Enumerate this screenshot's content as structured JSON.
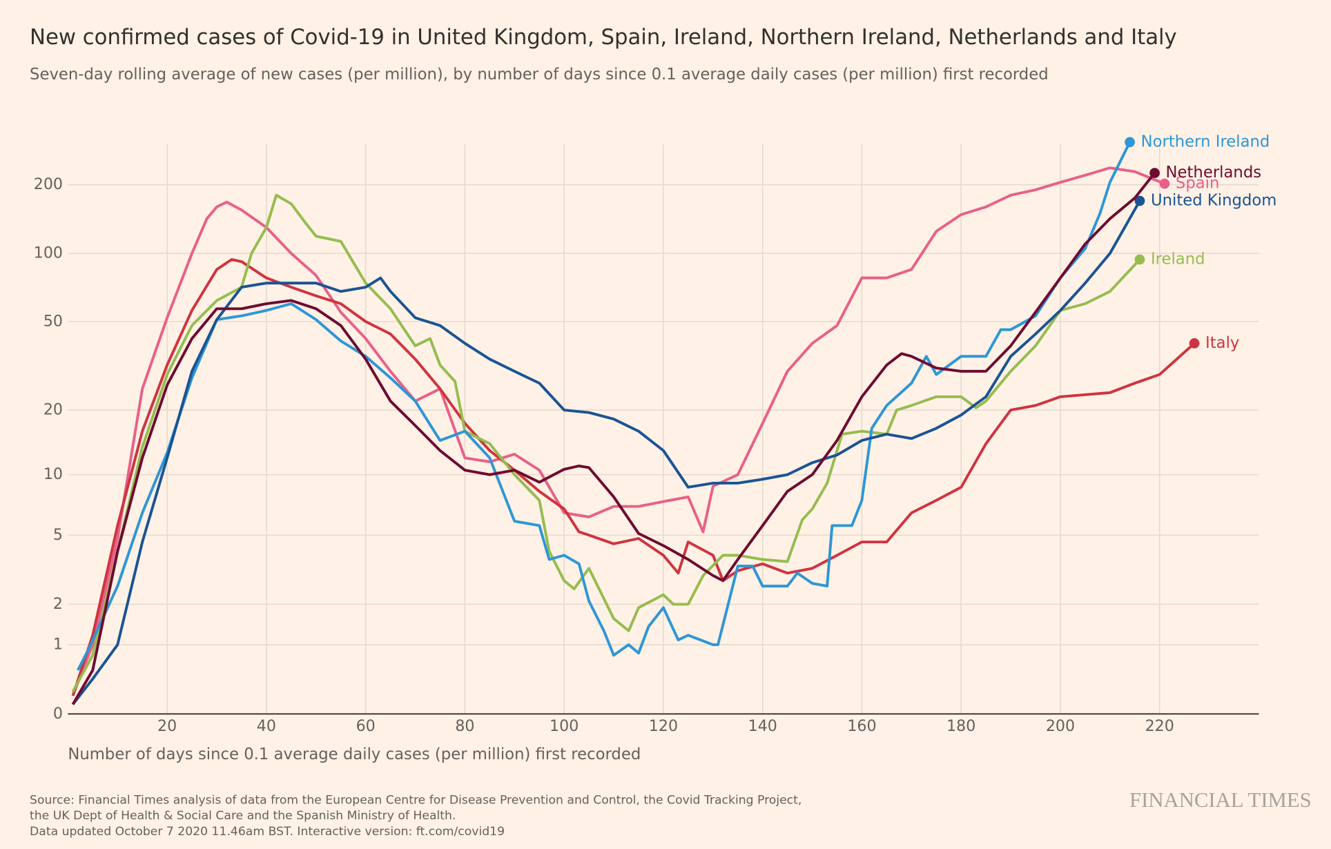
{
  "chart_data": {
    "type": "line",
    "title": "New confirmed cases of Covid-19 in United Kingdom, Spain, Ireland, Northern Ireland, Netherlands and Italy",
    "subtitle": "Seven-day rolling average of new cases (per million), by number of days since 0.1 average daily cases (per million) first recorded",
    "x_label": "Number of days since 0.1 average daily cases (per million) first recorded",
    "notes": [
      "Source: Financial Times analysis of data from the European Centre for Disease Prevention and Control, the Covid Tracking Project,",
      "the UK Dept of Health & Social Care and the Spanish Ministry of Health.",
      "Data updated October 7 2020 11.46am BST. Interactive version: ft.com/covid19"
    ],
    "logo": "FINANCIAL TIMES",
    "yscale": "log1p",
    "grid": true,
    "xlim": [
      0,
      240
    ],
    "xticks": [
      20,
      40,
      60,
      80,
      100,
      120,
      140,
      160,
      180,
      200,
      220
    ],
    "ylim": [
      0,
      300
    ],
    "yticks": [
      0,
      1,
      2,
      5,
      10,
      20,
      50,
      100,
      200
    ],
    "series": [
      {
        "name": "Spain",
        "color": "#e8608a",
        "x": [
          1,
          5,
          10,
          15,
          20,
          25,
          28,
          30,
          32,
          35,
          40,
          45,
          50,
          55,
          60,
          65,
          70,
          75,
          80,
          85,
          90,
          95,
          100,
          105,
          110,
          115,
          120,
          125,
          128,
          130,
          135,
          140,
          145,
          150,
          155,
          160,
          165,
          170,
          175,
          180,
          185,
          190,
          195,
          200,
          205,
          210,
          215,
          221
        ],
        "values": [
          0.2,
          1,
          4.8,
          25,
          52,
          100,
          142,
          160,
          168,
          155,
          130,
          100,
          80,
          55,
          42,
          30,
          22,
          25,
          12,
          11.5,
          12.5,
          10.5,
          6.5,
          6.2,
          7,
          7,
          7.4,
          7.8,
          5.2,
          8.8,
          10,
          17.4,
          30,
          40,
          48,
          78,
          78,
          85,
          125,
          148,
          160,
          180,
          190,
          205,
          220,
          237,
          228,
          202
        ]
      },
      {
        "name": "Italy",
        "color": "#cf3440",
        "x": [
          1,
          5,
          10,
          15,
          20,
          25,
          30,
          33,
          35,
          40,
          45,
          50,
          55,
          60,
          65,
          70,
          75,
          80,
          85,
          90,
          95,
          100,
          103,
          105,
          110,
          115,
          120,
          123,
          125,
          130,
          132,
          135,
          140,
          145,
          150,
          155,
          160,
          165,
          170,
          175,
          180,
          185,
          190,
          195,
          200,
          205,
          210,
          215,
          220,
          227
        ],
        "values": [
          0.2,
          1.2,
          5.6,
          16,
          32,
          56,
          85,
          94,
          92,
          78,
          71,
          65,
          60,
          50,
          44,
          34,
          25,
          17.4,
          13,
          10.5,
          8.3,
          6.8,
          5.2,
          5,
          4.5,
          4.8,
          3.9,
          3.1,
          4.6,
          3.9,
          2.8,
          3.2,
          3.5,
          3.1,
          3.3,
          3.9,
          4.6,
          4.6,
          6.5,
          7.5,
          8.7,
          14,
          20,
          21,
          23,
          23.5,
          24,
          26.5,
          29,
          40
        ]
      },
      {
        "name": "Ireland",
        "color": "#96bc4f",
        "x": [
          1,
          5,
          10,
          15,
          20,
          25,
          30,
          35,
          37,
          40,
          42,
          45,
          48,
          50,
          55,
          60,
          65,
          70,
          73,
          75,
          78,
          80,
          85,
          90,
          95,
          97,
          100,
          102,
          105,
          110,
          113,
          115,
          120,
          122,
          125,
          128,
          132,
          135,
          140,
          145,
          148,
          150,
          153,
          156,
          160,
          165,
          167,
          170,
          175,
          180,
          183,
          185,
          190,
          195,
          200,
          205,
          210,
          216
        ],
        "values": [
          0.25,
          0.8,
          4.1,
          13.5,
          29,
          48,
          62,
          71,
          100,
          130,
          180,
          165,
          135,
          119,
          113,
          74,
          57,
          39,
          42,
          32,
          27,
          16,
          14,
          10,
          7.5,
          4.1,
          2.8,
          2.5,
          3.3,
          1.6,
          1.3,
          1.9,
          2.3,
          2,
          2,
          3,
          3.9,
          3.9,
          3.7,
          3.6,
          6,
          6.8,
          9.1,
          15.5,
          16,
          15.5,
          20,
          21,
          23,
          23,
          20.5,
          22,
          30,
          39,
          56,
          60,
          68,
          94
        ]
      },
      {
        "name": "Northern Ireland",
        "color": "#2e96d6",
        "x": [
          2,
          4,
          10,
          15,
          20,
          25,
          30,
          35,
          40,
          45,
          50,
          55,
          60,
          65,
          70,
          75,
          80,
          85,
          90,
          95,
          97,
          100,
          103,
          105,
          108,
          110,
          113,
          115,
          117,
          120,
          123,
          125,
          130,
          131,
          135,
          138,
          140,
          145,
          147,
          150,
          153,
          154,
          158,
          160,
          162,
          165,
          170,
          173,
          175,
          180,
          185,
          188,
          190,
          195,
          200,
          205,
          208,
          210,
          214
        ],
        "values": [
          0.55,
          0.88,
          2.6,
          6.5,
          12.7,
          28,
          51,
          53,
          56,
          60,
          51,
          41,
          35,
          28,
          22,
          14.5,
          16,
          12,
          5.9,
          5.6,
          3.7,
          3.9,
          3.5,
          2.1,
          1.3,
          0.8,
          1,
          0.84,
          1.4,
          1.9,
          1.1,
          1.2,
          1,
          1,
          3.4,
          3.4,
          2.6,
          2.6,
          3.1,
          2.7,
          2.6,
          5.6,
          5.6,
          7.5,
          16.5,
          21,
          26.5,
          35,
          29,
          35,
          35,
          46,
          46,
          53,
          78,
          105,
          150,
          205,
          307
        ]
      },
      {
        "name": "United Kingdom",
        "color": "#1b5394",
        "x": [
          1,
          5,
          10,
          15,
          20,
          25,
          30,
          35,
          40,
          45,
          50,
          55,
          60,
          63,
          65,
          70,
          75,
          80,
          85,
          90,
          95,
          100,
          105,
          110,
          115,
          120,
          125,
          130,
          135,
          140,
          145,
          150,
          155,
          160,
          165,
          170,
          175,
          180,
          185,
          190,
          195,
          200,
          205,
          210,
          216
        ],
        "values": [
          0.1,
          0.42,
          1,
          4.6,
          12,
          30,
          51,
          71,
          74,
          74,
          74,
          68,
          71,
          78,
          68,
          52,
          48,
          40,
          34,
          30,
          26.5,
          20,
          19.5,
          18.2,
          16,
          13,
          8.7,
          9.1,
          9.1,
          9.5,
          10,
          11.4,
          12.4,
          14.5,
          15.5,
          14.8,
          16.5,
          19,
          23,
          35,
          44,
          56,
          74,
          100,
          170
        ]
      },
      {
        "name": "Netherlands",
        "color": "#6e0b30",
        "x": [
          1,
          5,
          10,
          15,
          20,
          25,
          30,
          35,
          40,
          45,
          50,
          55,
          60,
          65,
          70,
          75,
          80,
          85,
          90,
          95,
          100,
          103,
          105,
          110,
          115,
          120,
          125,
          130,
          132,
          135,
          140,
          145,
          150,
          155,
          160,
          165,
          168,
          170,
          175,
          180,
          185,
          190,
          195,
          200,
          205,
          210,
          215,
          219
        ],
        "values": [
          0.1,
          0.55,
          4.1,
          12,
          26,
          42,
          57,
          57,
          60,
          62,
          57,
          48,
          34,
          22,
          17,
          13,
          10.5,
          10,
          10.5,
          9.2,
          10.6,
          11,
          10.8,
          7.8,
          5.1,
          4.4,
          3.7,
          3,
          2.8,
          3.7,
          5.6,
          8.3,
          10,
          14.5,
          23,
          32,
          36,
          35,
          31,
          30,
          30,
          39,
          55,
          78,
          110,
          142,
          175,
          225
        ]
      }
    ]
  }
}
